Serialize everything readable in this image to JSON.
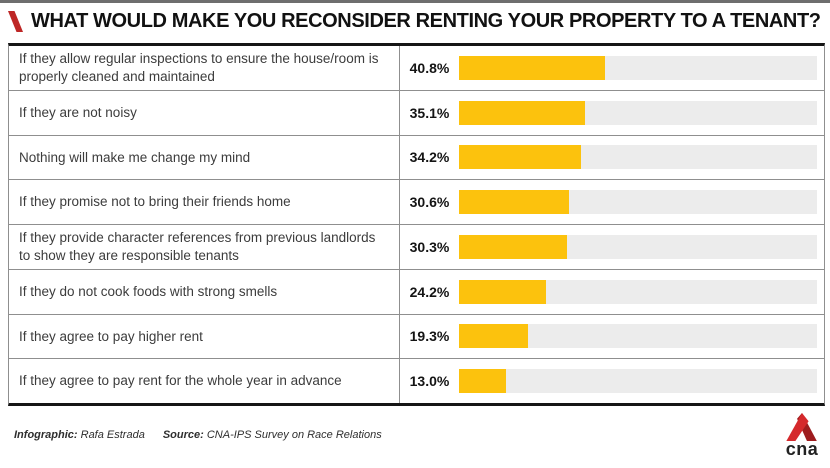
{
  "page": {
    "title": "WHAT WOULD MAKE YOU RECONSIDER RENTING YOUR PROPERTY TO A TENANT?"
  },
  "chart_data": {
    "type": "bar",
    "orientation": "horizontal",
    "title": "WHAT WOULD MAKE YOU RECONSIDER RENTING YOUR PROPERTY TO A TENANT?",
    "categories": [
      "If they allow regular inspections to ensure the house/room is properly cleaned and maintained",
      "If they are not noisy",
      "Nothing will make me change my mind",
      "If they promise not to bring their friends home",
      "If they provide character references from previous landlords to show they are responsible tenants",
      "If they do not cook foods with strong smells",
      "If they agree to pay higher rent",
      "If they agree to pay rent for the whole year in advance"
    ],
    "values": [
      40.8,
      35.1,
      34.2,
      30.6,
      30.3,
      24.2,
      19.3,
      13.0
    ],
    "value_labels": [
      "40.8%",
      "35.1%",
      "34.2%",
      "30.6%",
      "30.3%",
      "24.2%",
      "19.3%",
      "13.0%"
    ],
    "xlim": [
      0,
      100
    ],
    "grid": false,
    "legend": "none"
  },
  "colors": {
    "bar_fill": "#fcc20d",
    "bar_track": "#ececec",
    "title_slash_red": "#be2726",
    "logo_red_bright": "#d5292c",
    "logo_red_dark": "#9e1c1e",
    "border_dark": "#151515",
    "border_gray": "#8f8f8f",
    "top_strip": "#6e6e6e"
  },
  "footer": {
    "infographic_label": "Infographic:",
    "infographic_value": "Rafa Estrada",
    "source_label": "Source:",
    "source_value": "CNA-IPS Survey on Race Relations",
    "logo_text": "cna"
  }
}
